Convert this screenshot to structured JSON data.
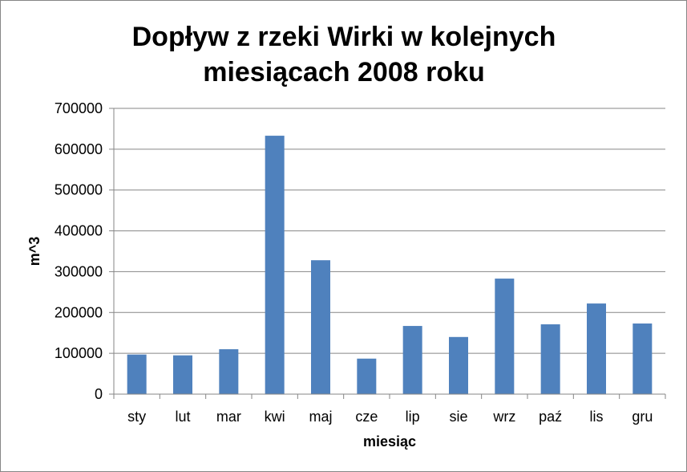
{
  "chart_data": {
    "type": "bar",
    "title_lines": [
      "Dopływ z rzeki Wirki w kolejnych",
      "miesiącach 2008 roku"
    ],
    "xlabel": "miesiąc",
    "ylabel": "m^3",
    "categories": [
      "sty",
      "lut",
      "mar",
      "kwi",
      "maj",
      "cze",
      "lip",
      "sie",
      "wrz",
      "paź",
      "lis",
      "gru"
    ],
    "values": [
      97000,
      95000,
      110000,
      633000,
      328000,
      87000,
      167000,
      140000,
      283000,
      171000,
      222000,
      173000
    ],
    "ylim": [
      0,
      700000
    ],
    "yticks": [
      "0",
      "100000",
      "200000",
      "300000",
      "400000",
      "500000",
      "600000",
      "700000"
    ],
    "grid": true,
    "legend": "none",
    "bar_color": "#4F81BD",
    "grid_color": "#868686"
  }
}
